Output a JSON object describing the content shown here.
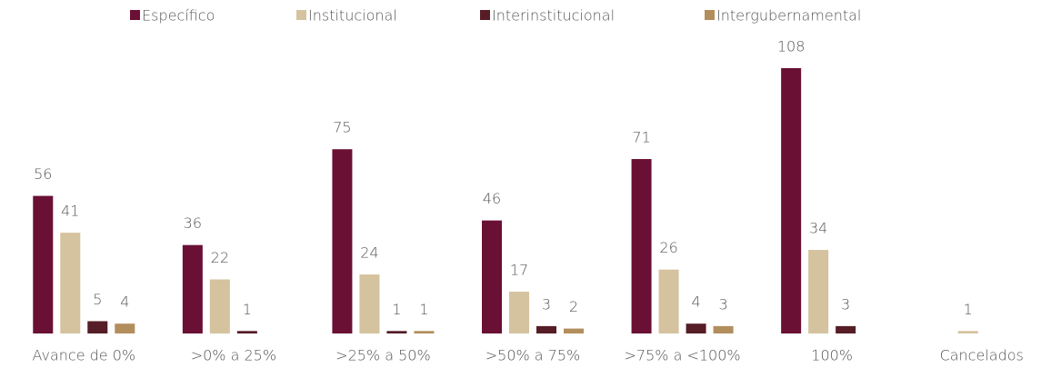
{
  "chart_data": {
    "type": "bar",
    "categories": [
      "Avance de 0%",
      ">0% a 25%",
      ">25% a 50%",
      ">50% a 75%",
      ">75% a <100%",
      "100%",
      "Cancelados"
    ],
    "series": [
      {
        "name": "Específico",
        "color": "#6a1035",
        "values": [
          56,
          36,
          75,
          46,
          71,
          108,
          null
        ]
      },
      {
        "name": "Institucional",
        "color": "#d5c29e",
        "values": [
          41,
          22,
          24,
          17,
          26,
          34,
          1
        ]
      },
      {
        "name": "Interinstitucional",
        "color": "#561d27",
        "values": [
          5,
          1,
          1,
          3,
          4,
          3,
          null
        ]
      },
      {
        "name": "Intergubernamental",
        "color": "#b38e5d",
        "values": [
          4,
          null,
          1,
          2,
          3,
          null,
          null
        ]
      }
    ],
    "legend": "top"
  }
}
